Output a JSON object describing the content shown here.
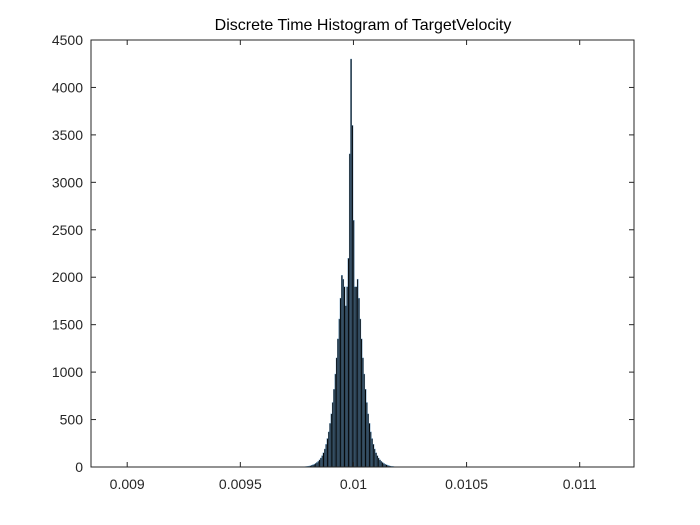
{
  "chart_data": {
    "type": "bar",
    "title": "Discrete Time Histogram of TargetVelocity",
    "xlabel": "",
    "ylabel": "",
    "xlim": [
      0.00884,
      0.01124
    ],
    "ylim": [
      0,
      4500
    ],
    "x_ticks": [
      0.009,
      0.0095,
      0.01,
      0.0105,
      0.011
    ],
    "x_tick_labels": [
      "0.009",
      "0.0095",
      "0.01",
      "0.0105",
      "0.011"
    ],
    "y_ticks": [
      0,
      500,
      1000,
      1500,
      2000,
      2500,
      3000,
      3500,
      4000,
      4500
    ],
    "y_tick_labels": [
      "0",
      "500",
      "1000",
      "1500",
      "2000",
      "2500",
      "3000",
      "3500",
      "4000",
      "4500"
    ],
    "grid": false,
    "bin_width": 5.8e-06,
    "x": [
      0.009775,
      0.0097808,
      0.0097866,
      0.0097924,
      0.0097982,
      0.009804,
      0.0098098,
      0.0098156,
      0.0098214,
      0.0098272,
      0.009833,
      0.0098388,
      0.0098446,
      0.0098504,
      0.0098562,
      0.009862,
      0.0098678,
      0.0098736,
      0.0098794,
      0.0098852,
      0.009891,
      0.0098968,
      0.0099026,
      0.0099084,
      0.0099142,
      0.00992,
      0.0099258,
      0.0099316,
      0.0099374,
      0.0099432,
      0.009949,
      0.0099548,
      0.0099606,
      0.0099664,
      0.0099722,
      0.009978,
      0.0099838,
      0.0099896,
      0.0099954,
      0.0100012,
      0.010007,
      0.0100128,
      0.0100186,
      0.0100244,
      0.0100302,
      0.010036,
      0.0100418,
      0.0100476,
      0.0100534,
      0.0100592,
      0.010065,
      0.0100708,
      0.0100766,
      0.0100824,
      0.0100882,
      0.010094,
      0.0100998,
      0.0101056,
      0.0101114,
      0.0101172,
      0.010123,
      0.0101288,
      0.0101346,
      0.0101404,
      0.0101462,
      0.010152,
      0.0101578,
      0.0101636,
      0.0101694,
      0.0101752,
      0.010181,
      0.0101868,
      0.0101926,
      0.0101984,
      0.0102042,
      0.01021,
      0.0102158,
      0.0102216
    ],
    "values": [
      2,
      3,
      4,
      6,
      8,
      10,
      14,
      18,
      24,
      30,
      38,
      48,
      60,
      75,
      95,
      120,
      150,
      190,
      240,
      300,
      370,
      460,
      560,
      680,
      820,
      980,
      1150,
      1350,
      1560,
      1780,
      2020,
      1980,
      1900,
      1700,
      1900,
      2200,
      3300,
      4300,
      3600,
      2600,
      1900,
      1900,
      1980,
      1780,
      1560,
      1350,
      1150,
      980,
      820,
      680,
      560,
      460,
      370,
      300,
      240,
      190,
      150,
      120,
      95,
      75,
      60,
      48,
      38,
      30,
      24,
      18,
      14,
      10,
      8,
      6,
      4,
      3,
      2,
      2,
      1,
      1,
      1,
      1
    ],
    "bar_color": "#000000",
    "bar_edge_color": "#6fa8d6"
  }
}
